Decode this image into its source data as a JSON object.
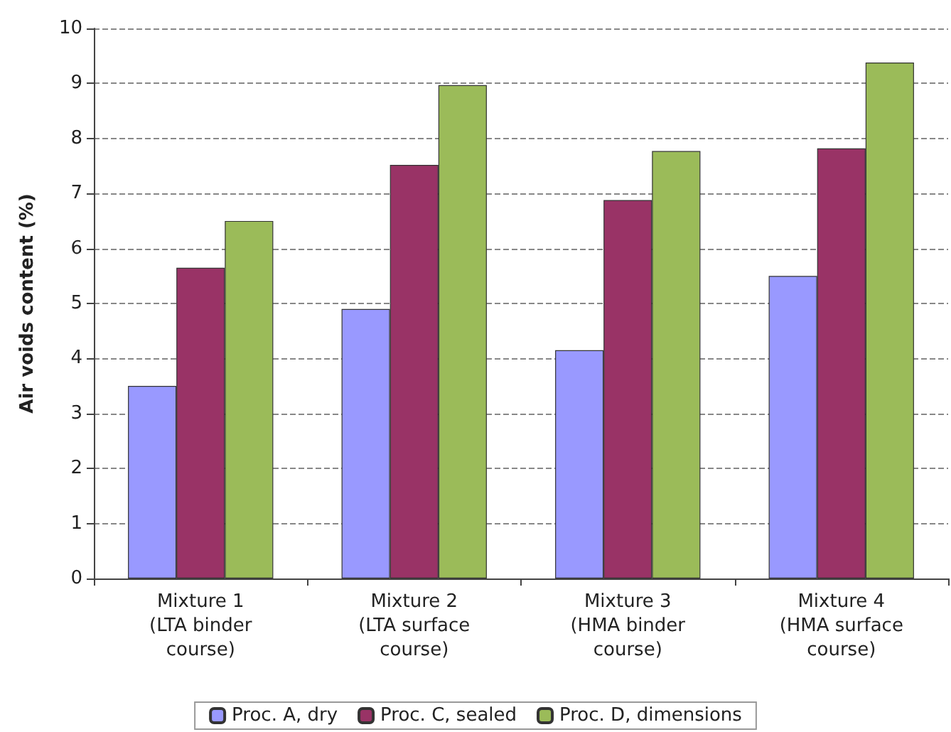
{
  "chart_data": {
    "type": "bar",
    "ylabel": "Air voids content (%)",
    "categories": [
      "Mixture 1\n(LTA binder\ncourse)",
      "Mixture 2\n(LTA surface\ncourse)",
      "Mixture 3\n(HMA binder\ncourse)",
      "Mixture 4\n(HMA surface\ncourse)"
    ],
    "series": [
      {
        "name": "Proc. A, dry",
        "color": "#9999ff",
        "values": [
          3.5,
          4.9,
          4.15,
          5.5
        ]
      },
      {
        "name": "Proc. C, sealed",
        "color": "#993366",
        "values": [
          5.65,
          7.52,
          6.88,
          7.82
        ]
      },
      {
        "name": "Proc. D, dimensions",
        "color": "#9bbb59",
        "values": [
          6.5,
          8.97,
          7.77,
          9.38
        ]
      }
    ],
    "ylim": [
      0,
      10
    ],
    "yticks": [
      0,
      1,
      2,
      3,
      4,
      5,
      6,
      7,
      8,
      9,
      10
    ],
    "grid": "y",
    "legend": "bottom"
  }
}
